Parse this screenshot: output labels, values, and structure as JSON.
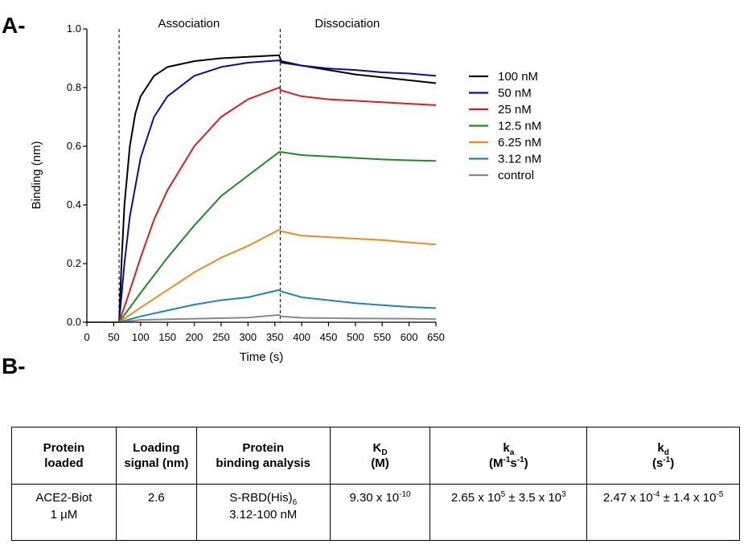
{
  "panels": {
    "a": "A-",
    "b": "B-"
  },
  "chart_data": {
    "type": "line",
    "xlabel": "Time (s)",
    "ylabel": "Binding (nm)",
    "xlim": [
      0,
      650
    ],
    "ylim": [
      0,
      1.0
    ],
    "xticks": [
      0,
      50,
      100,
      150,
      200,
      250,
      300,
      350,
      400,
      450,
      500,
      550,
      600,
      650
    ],
    "yticks": [
      0.0,
      0.2,
      0.4,
      0.6,
      0.8,
      1.0
    ],
    "phase_boundaries": [
      60,
      360
    ],
    "phases": [
      {
        "label": "Association",
        "center": 190
      },
      {
        "label": "Dissociation",
        "center": 485
      }
    ],
    "legend_position": "right",
    "series": [
      {
        "name": "100 nM",
        "color": "#000000",
        "points": [
          [
            0,
            0
          ],
          [
            60,
            0
          ],
          [
            65,
            0.22
          ],
          [
            70,
            0.4
          ],
          [
            80,
            0.6
          ],
          [
            90,
            0.71
          ],
          [
            100,
            0.77
          ],
          [
            125,
            0.84
          ],
          [
            150,
            0.87
          ],
          [
            200,
            0.89
          ],
          [
            250,
            0.9
          ],
          [
            300,
            0.905
          ],
          [
            358,
            0.91
          ],
          [
            362,
            0.89
          ],
          [
            400,
            0.875
          ],
          [
            450,
            0.86
          ],
          [
            500,
            0.845
          ],
          [
            550,
            0.835
          ],
          [
            600,
            0.825
          ],
          [
            650,
            0.815
          ]
        ]
      },
      {
        "name": "50 nM",
        "color": "#0a0fa0",
        "points": [
          [
            0,
            0
          ],
          [
            60,
            0
          ],
          [
            70,
            0.2
          ],
          [
            80,
            0.36
          ],
          [
            100,
            0.56
          ],
          [
            125,
            0.7
          ],
          [
            150,
            0.77
          ],
          [
            200,
            0.84
          ],
          [
            250,
            0.87
          ],
          [
            300,
            0.885
          ],
          [
            358,
            0.893
          ],
          [
            362,
            0.885
          ],
          [
            400,
            0.875
          ],
          [
            450,
            0.865
          ],
          [
            500,
            0.86
          ],
          [
            550,
            0.852
          ],
          [
            600,
            0.848
          ],
          [
            650,
            0.84
          ]
        ]
      },
      {
        "name": "25 nM",
        "color": "#e11b1b",
        "points": [
          [
            0,
            0
          ],
          [
            60,
            0
          ],
          [
            75,
            0.08
          ],
          [
            100,
            0.22
          ],
          [
            125,
            0.35
          ],
          [
            150,
            0.45
          ],
          [
            200,
            0.6
          ],
          [
            250,
            0.7
          ],
          [
            300,
            0.76
          ],
          [
            358,
            0.8
          ],
          [
            362,
            0.79
          ],
          [
            400,
            0.77
          ],
          [
            450,
            0.76
          ],
          [
            500,
            0.755
          ],
          [
            550,
            0.75
          ],
          [
            600,
            0.745
          ],
          [
            650,
            0.74
          ]
        ]
      },
      {
        "name": "12.5 nM",
        "color": "#1f8a1f",
        "points": [
          [
            0,
            0
          ],
          [
            60,
            0
          ],
          [
            100,
            0.1
          ],
          [
            150,
            0.22
          ],
          [
            200,
            0.33
          ],
          [
            250,
            0.43
          ],
          [
            300,
            0.5
          ],
          [
            358,
            0.58
          ],
          [
            362,
            0.58
          ],
          [
            400,
            0.57
          ],
          [
            450,
            0.565
          ],
          [
            500,
            0.56
          ],
          [
            550,
            0.555
          ],
          [
            600,
            0.552
          ],
          [
            650,
            0.55
          ]
        ]
      },
      {
        "name": "6.25 nM",
        "color": "#f08a1c",
        "points": [
          [
            0,
            0
          ],
          [
            60,
            0
          ],
          [
            100,
            0.05
          ],
          [
            150,
            0.11
          ],
          [
            200,
            0.17
          ],
          [
            250,
            0.22
          ],
          [
            300,
            0.26
          ],
          [
            358,
            0.315
          ],
          [
            362,
            0.31
          ],
          [
            400,
            0.295
          ],
          [
            450,
            0.29
          ],
          [
            500,
            0.285
          ],
          [
            550,
            0.28
          ],
          [
            600,
            0.272
          ],
          [
            650,
            0.265
          ]
        ]
      },
      {
        "name": "3.12 nM",
        "color": "#1b86bb",
        "points": [
          [
            0,
            0
          ],
          [
            60,
            0
          ],
          [
            100,
            0.02
          ],
          [
            150,
            0.04
          ],
          [
            200,
            0.06
          ],
          [
            250,
            0.075
          ],
          [
            300,
            0.085
          ],
          [
            358,
            0.11
          ],
          [
            362,
            0.105
          ],
          [
            400,
            0.085
          ],
          [
            450,
            0.075
          ],
          [
            500,
            0.065
          ],
          [
            550,
            0.058
          ],
          [
            600,
            0.052
          ],
          [
            650,
            0.048
          ]
        ]
      },
      {
        "name": "control",
        "color": "#8a8a8a",
        "points": [
          [
            0,
            0
          ],
          [
            60,
            0
          ],
          [
            100,
            0.008
          ],
          [
            200,
            0.012
          ],
          [
            300,
            0.016
          ],
          [
            358,
            0.025
          ],
          [
            362,
            0.02
          ],
          [
            400,
            0.015
          ],
          [
            500,
            0.013
          ],
          [
            600,
            0.012
          ],
          [
            650,
            0.011
          ]
        ]
      }
    ]
  },
  "table": {
    "headers": [
      {
        "line1": "Protein",
        "line2": "loaded"
      },
      {
        "line1": "Loading",
        "line2": "signal (nm)"
      },
      {
        "line1": "Protein",
        "line2": "binding analysis"
      },
      {
        "sym": "K",
        "sub": "D",
        "unit": "(M)"
      },
      {
        "sym": "k",
        "sub": "a",
        "unit_pre": "(M",
        "unit_sup1": "-1",
        "unit_mid": "s",
        "unit_sup2": "-1",
        "unit_post": ")"
      },
      {
        "sym": "k",
        "sub": "d",
        "unit_pre": "(s",
        "unit_sup1": "-1",
        "unit_post": ")"
      }
    ],
    "row": {
      "protein_line1": "ACE2-Biot",
      "protein_line2": "1 µM",
      "loading_signal": "2.6",
      "analyte_line1": "S-RBD(His)",
      "analyte_sub": "6",
      "analyte_line2": "3.12-100 nM",
      "kd_base": "9.30 x 10",
      "kd_exp": "-10",
      "ka_base": "2.65 x 10",
      "ka_exp": "5",
      "ka_err_base": " ± 3.5 x 10",
      "ka_err_exp": "3",
      "koff_base": "2.47 x 10",
      "koff_exp": "-4",
      "koff_err_base": " ± 1.4 x 10",
      "koff_err_exp": "-5"
    }
  }
}
